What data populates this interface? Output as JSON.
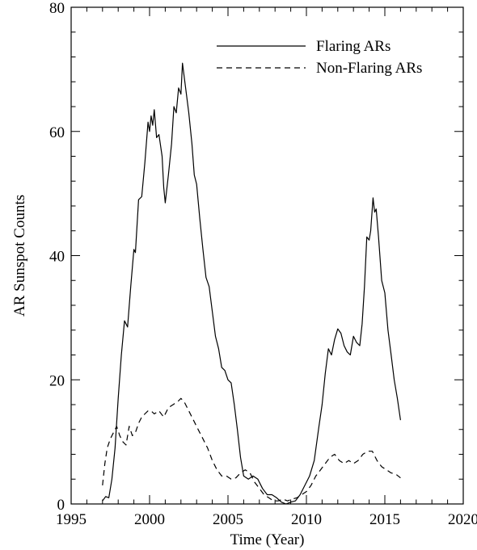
{
  "chart_data": {
    "type": "line",
    "xlabel": "Time (Year)",
    "ylabel": "AR Sunspot Counts",
    "xlim": [
      1995,
      2020
    ],
    "ylim": [
      0,
      80
    ],
    "x_ticks": [
      "1995",
      "2000",
      "2005",
      "2010",
      "2015",
      "2020"
    ],
    "y_ticks": [
      "0",
      "20",
      "40",
      "60",
      "80"
    ],
    "grid": false,
    "legend_position": "top-right",
    "series": [
      {
        "name": "Flaring ARs",
        "style": "solid",
        "color": "#000000",
        "points": [
          [
            1997.0,
            0.5
          ],
          [
            1997.2,
            1.2
          ],
          [
            1997.4,
            1.0
          ],
          [
            1997.6,
            4.0
          ],
          [
            1997.8,
            9.0
          ],
          [
            1998.0,
            17.0
          ],
          [
            1998.2,
            24.0
          ],
          [
            1998.4,
            29.5
          ],
          [
            1998.6,
            28.5
          ],
          [
            1998.8,
            35.0
          ],
          [
            1999.0,
            41.0
          ],
          [
            1999.1,
            40.5
          ],
          [
            1999.3,
            49.0
          ],
          [
            1999.5,
            49.5
          ],
          [
            1999.7,
            55.0
          ],
          [
            1999.9,
            61.5
          ],
          [
            2000.0,
            60.0
          ],
          [
            2000.1,
            62.5
          ],
          [
            2000.2,
            61.0
          ],
          [
            2000.3,
            63.5
          ],
          [
            2000.45,
            59.0
          ],
          [
            2000.6,
            59.5
          ],
          [
            2000.8,
            56.0
          ],
          [
            2000.9,
            51.0
          ],
          [
            2001.0,
            48.5
          ],
          [
            2001.2,
            53.0
          ],
          [
            2001.4,
            58.0
          ],
          [
            2001.55,
            64.0
          ],
          [
            2001.7,
            63.0
          ],
          [
            2001.85,
            67.0
          ],
          [
            2002.0,
            66.0
          ],
          [
            2002.1,
            71.0
          ],
          [
            2002.3,
            67.0
          ],
          [
            2002.5,
            63.0
          ],
          [
            2002.7,
            58.0
          ],
          [
            2002.85,
            53.0
          ],
          [
            2003.0,
            51.5
          ],
          [
            2003.2,
            46.0
          ],
          [
            2003.4,
            41.0
          ],
          [
            2003.6,
            36.5
          ],
          [
            2003.8,
            35.0
          ],
          [
            2004.0,
            31.0
          ],
          [
            2004.2,
            27.0
          ],
          [
            2004.4,
            25.0
          ],
          [
            2004.6,
            22.0
          ],
          [
            2004.8,
            21.5
          ],
          [
            2005.0,
            20.0
          ],
          [
            2005.2,
            19.5
          ],
          [
            2005.4,
            16.0
          ],
          [
            2005.6,
            12.0
          ],
          [
            2005.8,
            7.5
          ],
          [
            2006.0,
            4.5
          ],
          [
            2006.3,
            4.0
          ],
          [
            2006.6,
            4.5
          ],
          [
            2006.9,
            4.0
          ],
          [
            2007.2,
            2.5
          ],
          [
            2007.5,
            1.5
          ],
          [
            2007.8,
            1.5
          ],
          [
            2008.1,
            1.0
          ],
          [
            2008.4,
            0.3
          ],
          [
            2008.7,
            0.0
          ],
          [
            2009.0,
            0.3
          ],
          [
            2009.3,
            0.5
          ],
          [
            2009.6,
            1.5
          ],
          [
            2009.9,
            3.0
          ],
          [
            2010.2,
            4.5
          ],
          [
            2010.5,
            7.0
          ],
          [
            2010.8,
            12.5
          ],
          [
            2011.0,
            16.0
          ],
          [
            2011.2,
            21.0
          ],
          [
            2011.4,
            25.0
          ],
          [
            2011.6,
            24.0
          ],
          [
            2011.8,
            26.5
          ],
          [
            2012.0,
            28.2
          ],
          [
            2012.2,
            27.5
          ],
          [
            2012.4,
            25.5
          ],
          [
            2012.6,
            24.5
          ],
          [
            2012.8,
            24.0
          ],
          [
            2013.0,
            27.0
          ],
          [
            2013.2,
            26.0
          ],
          [
            2013.4,
            25.5
          ],
          [
            2013.55,
            29.0
          ],
          [
            2013.7,
            35.0
          ],
          [
            2013.85,
            43.0
          ],
          [
            2014.0,
            42.5
          ],
          [
            2014.1,
            44.0
          ],
          [
            2014.25,
            49.3
          ],
          [
            2014.35,
            47.0
          ],
          [
            2014.45,
            47.5
          ],
          [
            2014.6,
            43.0
          ],
          [
            2014.8,
            36.0
          ],
          [
            2015.0,
            34.0
          ],
          [
            2015.2,
            28.0
          ],
          [
            2015.4,
            24.0
          ],
          [
            2015.6,
            20.0
          ],
          [
            2015.8,
            17.0
          ],
          [
            2016.0,
            13.5
          ]
        ]
      },
      {
        "name": "Non-Flaring ARs",
        "style": "dashed",
        "color": "#000000",
        "points": [
          [
            1997.0,
            3.0
          ],
          [
            1997.15,
            6.5
          ],
          [
            1997.3,
            9.0
          ],
          [
            1997.5,
            10.5
          ],
          [
            1997.7,
            11.5
          ],
          [
            1997.9,
            12.5
          ],
          [
            1998.1,
            11.0
          ],
          [
            1998.3,
            10.0
          ],
          [
            1998.5,
            9.5
          ],
          [
            1998.7,
            12.5
          ],
          [
            1998.9,
            11.0
          ],
          [
            1999.1,
            11.5
          ],
          [
            1999.3,
            13.0
          ],
          [
            1999.5,
            14.0
          ],
          [
            1999.7,
            14.5
          ],
          [
            1999.9,
            15.0
          ],
          [
            2000.1,
            15.0
          ],
          [
            2000.3,
            14.5
          ],
          [
            2000.6,
            15.0
          ],
          [
            2000.9,
            14.0
          ],
          [
            2001.2,
            15.5
          ],
          [
            2001.5,
            16.0
          ],
          [
            2001.8,
            16.5
          ],
          [
            2002.0,
            17.0
          ],
          [
            2002.2,
            16.5
          ],
          [
            2002.5,
            15.0
          ],
          [
            2002.8,
            13.5
          ],
          [
            2003.1,
            12.0
          ],
          [
            2003.4,
            10.5
          ],
          [
            2003.7,
            9.0
          ],
          [
            2004.0,
            7.0
          ],
          [
            2004.3,
            5.5
          ],
          [
            2004.6,
            4.5
          ],
          [
            2004.9,
            4.5
          ],
          [
            2005.2,
            4.0
          ],
          [
            2005.5,
            4.2
          ],
          [
            2005.8,
            5.0
          ],
          [
            2006.1,
            5.5
          ],
          [
            2006.4,
            5.0
          ],
          [
            2006.7,
            3.5
          ],
          [
            2007.0,
            2.5
          ],
          [
            2007.3,
            1.5
          ],
          [
            2007.6,
            1.0
          ],
          [
            2007.9,
            0.5
          ],
          [
            2008.2,
            0.5
          ],
          [
            2008.5,
            0.8
          ],
          [
            2008.8,
            0.5
          ],
          [
            2009.1,
            0.8
          ],
          [
            2009.4,
            1.0
          ],
          [
            2009.7,
            1.5
          ],
          [
            2010.0,
            2.0
          ],
          [
            2010.3,
            3.0
          ],
          [
            2010.6,
            4.5
          ],
          [
            2010.9,
            5.5
          ],
          [
            2011.2,
            6.5
          ],
          [
            2011.5,
            7.5
          ],
          [
            2011.8,
            8.0
          ],
          [
            2012.1,
            7.0
          ],
          [
            2012.4,
            6.5
          ],
          [
            2012.7,
            7.0
          ],
          [
            2013.0,
            6.5
          ],
          [
            2013.3,
            7.0
          ],
          [
            2013.6,
            8.0
          ],
          [
            2013.9,
            8.5
          ],
          [
            2014.2,
            8.5
          ],
          [
            2014.5,
            7.0
          ],
          [
            2014.8,
            6.0
          ],
          [
            2015.1,
            5.5
          ],
          [
            2015.4,
            5.0
          ],
          [
            2015.7,
            4.8
          ],
          [
            2016.0,
            4.2
          ]
        ]
      }
    ]
  }
}
